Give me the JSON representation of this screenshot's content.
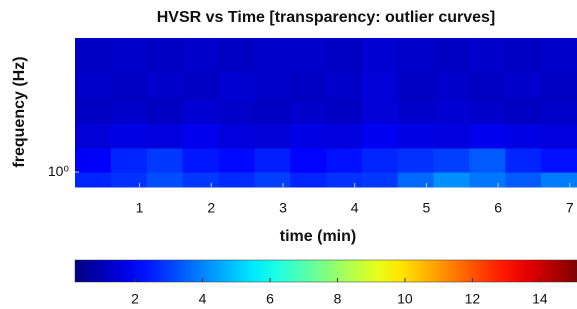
{
  "chart_data": {
    "type": "heatmap",
    "title": "HVSR vs Time [transparency: outlier curves]",
    "xlabel": "time (min)",
    "ylabel": "frequency (Hz)",
    "x_edges": [
      0.1,
      0.6,
      1.1,
      1.6,
      2.1,
      2.6,
      3.1,
      3.6,
      4.1,
      4.6,
      5.1,
      5.6,
      6.1,
      6.6,
      7.1
    ],
    "y_edges": [
      0.85,
      1.0,
      1.3,
      1.7,
      2.2,
      3.0,
      4.3
    ],
    "z": [
      [
        2.6,
        2.8,
        3.2,
        2.9,
        2.7,
        3.0,
        2.6,
        2.8,
        2.9,
        3.6,
        4.2,
        3.8,
        3.4,
        3.9
      ],
      [
        2.0,
        2.6,
        2.9,
        2.4,
        2.2,
        2.5,
        2.1,
        2.3,
        2.6,
        2.8,
        3.0,
        3.4,
        2.6,
        2.3
      ],
      [
        1.5,
        1.7,
        1.6,
        1.8,
        1.6,
        1.5,
        1.7,
        1.6,
        1.9,
        1.7,
        1.6,
        1.8,
        1.7,
        1.6
      ],
      [
        1.2,
        1.3,
        1.2,
        1.4,
        1.3,
        1.2,
        1.3,
        1.2,
        1.5,
        1.3,
        1.4,
        1.3,
        1.2,
        1.3
      ],
      [
        1.3,
        1.2,
        1.3,
        1.2,
        1.4,
        1.3,
        1.2,
        1.3,
        1.5,
        1.2,
        1.3,
        1.2,
        1.3,
        1.2
      ],
      [
        1.2,
        1.3,
        1.2,
        1.3,
        1.2,
        1.3,
        1.3,
        1.2,
        1.4,
        1.3,
        1.2,
        1.3,
        1.2,
        1.3
      ]
    ],
    "xlim": [
      0.1,
      7.1
    ],
    "xticks": [
      1,
      2,
      3,
      4,
      5,
      6,
      7
    ],
    "ylim": [
      0.85,
      4.3
    ],
    "yscale": "log",
    "yticks": [
      {
        "value": 1,
        "label": "10⁰"
      }
    ],
    "clim": [
      0.22,
      15.1
    ],
    "colormap": "jet",
    "cticks": [
      2,
      4,
      6,
      8,
      10,
      12,
      14
    ]
  }
}
